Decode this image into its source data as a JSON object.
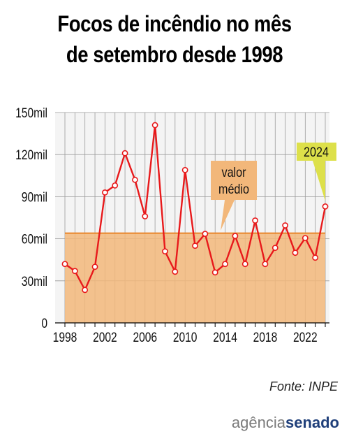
{
  "title_line1": "Focos de incêndio no mês",
  "title_line2": "de setembro desde 1998",
  "source": "Fonte: INPE",
  "logo": {
    "part1": "agência",
    "part2": "senado"
  },
  "colors": {
    "line": "#e8191b",
    "average_fill": "#f2b77a",
    "average_line": "#e9862a",
    "callout_2024": "#dde04a",
    "callout_avg": "#f2b77a"
  },
  "chart_data": {
    "type": "line",
    "title": "Focos de incêndio no mês de setembro desde 1998",
    "x": [
      1998,
      1999,
      2000,
      2001,
      2002,
      2003,
      2004,
      2005,
      2006,
      2007,
      2008,
      2009,
      2010,
      2011,
      2012,
      2013,
      2014,
      2015,
      2016,
      2017,
      2018,
      2019,
      2020,
      2021,
      2022,
      2023,
      2024
    ],
    "series": [
      {
        "values": [
          42000,
          37000,
          23500,
          40000,
          93000,
          98000,
          121000,
          102000,
          76000,
          141000,
          51000,
          36500,
          109000,
          55000,
          63500,
          36000,
          42000,
          62000,
          42000,
          73000,
          42000,
          53500,
          69500,
          50000,
          60500,
          46500,
          83000
        ]
      }
    ],
    "average": 64000,
    "average_label": "valor médio",
    "highlight_label": "2024",
    "ylim": [
      0,
      150000
    ],
    "yticks": [
      0,
      30000,
      60000,
      90000,
      120000,
      150000
    ],
    "ytick_labels": [
      "0",
      "30mil",
      "60mil",
      "90mil",
      "120mil",
      "150mil"
    ],
    "xticks": [
      1998,
      2002,
      2006,
      2010,
      2014,
      2018,
      2022
    ],
    "grid": true
  }
}
